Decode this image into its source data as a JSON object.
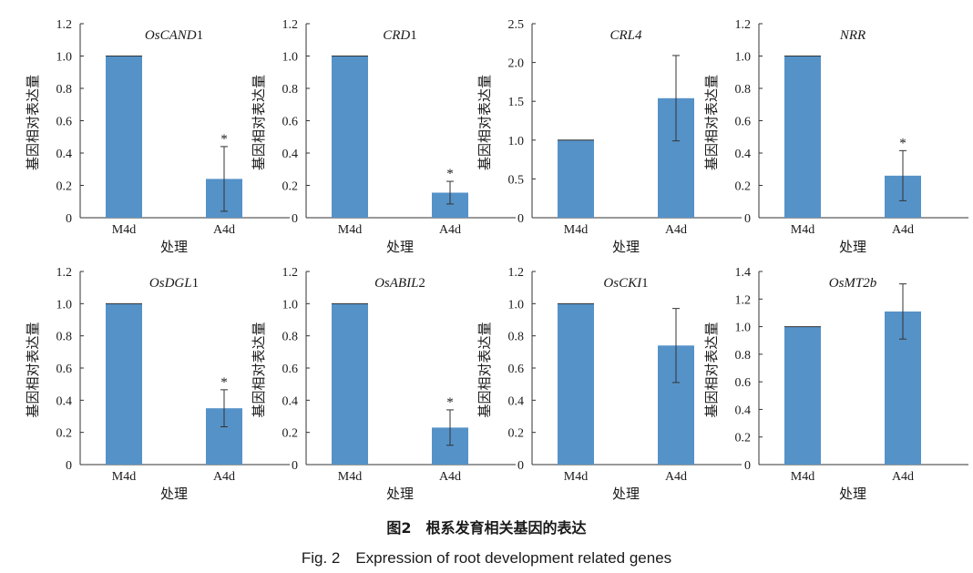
{
  "caption_cn": "图2　根系发育相关基因的表达",
  "caption_en": "Fig. 2　Expression of root development related genes",
  "colors": {
    "bar": "#5592c8",
    "axis": "#333333",
    "error": "#333333"
  },
  "chart_data": [
    {
      "type": "bar",
      "title_parts": [
        {
          "t": "OsCAND",
          "i": true
        },
        {
          "t": "1",
          "i": false
        }
      ],
      "ylabel": "基因相对表达量",
      "xlabel": "处理",
      "categories": [
        "M4d",
        "A4d"
      ],
      "values": [
        1.0,
        0.24
      ],
      "errors": [
        0.0,
        0.2
      ],
      "significance": [
        "",
        "*"
      ],
      "ylim": [
        0,
        1.2
      ],
      "yticks": [
        "0",
        "0.2",
        "0.4",
        "0.6",
        "0.8",
        "1.0",
        "1.2"
      ]
    },
    {
      "type": "bar",
      "title_parts": [
        {
          "t": "CRD",
          "i": true
        },
        {
          "t": "1",
          "i": false
        }
      ],
      "ylabel": "基因相对表达量",
      "xlabel": "处理",
      "categories": [
        "M4d",
        "A4d"
      ],
      "values": [
        1.0,
        0.155
      ],
      "errors": [
        0.0,
        0.07
      ],
      "significance": [
        "",
        "*"
      ],
      "ylim": [
        0,
        1.2
      ],
      "yticks": [
        "0",
        "0.2",
        "0.4",
        "0.6",
        "0.8",
        "1.0",
        "1.2"
      ]
    },
    {
      "type": "bar",
      "title_parts": [
        {
          "t": "CRL4",
          "i": true
        }
      ],
      "ylabel": "基因相对表达量",
      "xlabel": "处理",
      "categories": [
        "M4d",
        "A4d"
      ],
      "values": [
        1.0,
        1.54
      ],
      "errors": [
        0.0,
        0.55
      ],
      "significance": [
        "",
        ""
      ],
      "ylim": [
        0,
        2.5
      ],
      "yticks": [
        "0",
        "0.5",
        "1.0",
        "1.5",
        "2.0",
        "2.5"
      ]
    },
    {
      "type": "bar",
      "title_parts": [
        {
          "t": "NRR",
          "i": true
        }
      ],
      "ylabel": "基因相对表达量",
      "xlabel": "处理",
      "categories": [
        "M4d",
        "A4d"
      ],
      "values": [
        1.0,
        0.26
      ],
      "errors": [
        0.0,
        0.155
      ],
      "significance": [
        "",
        "*"
      ],
      "ylim": [
        0,
        1.2
      ],
      "yticks": [
        "0",
        "0.2",
        "0.4",
        "0.6",
        "0.8",
        "1.0",
        "1.2"
      ]
    },
    {
      "type": "bar",
      "title_parts": [
        {
          "t": "OsDGL",
          "i": true
        },
        {
          "t": "1",
          "i": false
        }
      ],
      "ylabel": "基因相对表达量",
      "xlabel": "处理",
      "categories": [
        "M4d",
        "A4d"
      ],
      "values": [
        1.0,
        0.35
      ],
      "errors": [
        0.0,
        0.115
      ],
      "significance": [
        "",
        "*"
      ],
      "ylim": [
        0,
        1.2
      ],
      "yticks": [
        "0",
        "0.2",
        "0.4",
        "0.6",
        "0.8",
        "1.0",
        "1.2"
      ]
    },
    {
      "type": "bar",
      "title_parts": [
        {
          "t": "OsABIL",
          "i": true
        },
        {
          "t": "2",
          "i": false
        }
      ],
      "ylabel": "基因相对表达量",
      "xlabel": "处理",
      "categories": [
        "M4d",
        "A4d"
      ],
      "values": [
        1.0,
        0.23
      ],
      "errors": [
        0.0,
        0.11
      ],
      "significance": [
        "",
        "*"
      ],
      "ylim": [
        0,
        1.2
      ],
      "yticks": [
        "0",
        "0.2",
        "0.4",
        "0.6",
        "0.8",
        "1.0",
        "1.2"
      ]
    },
    {
      "type": "bar",
      "title_parts": [
        {
          "t": "OsCKI",
          "i": true
        },
        {
          "t": "1",
          "i": false
        }
      ],
      "ylabel": "基因相对表达量",
      "xlabel": "处理",
      "categories": [
        "M4d",
        "A4d"
      ],
      "values": [
        1.0,
        0.74
      ],
      "errors": [
        0.0,
        0.23
      ],
      "significance": [
        "",
        ""
      ],
      "ylim": [
        0,
        1.2
      ],
      "yticks": [
        "0",
        "0.2",
        "0.4",
        "0.6",
        "0.8",
        "1.0",
        "1.2"
      ]
    },
    {
      "type": "bar",
      "title_parts": [
        {
          "t": "OsMT2b",
          "i": true
        }
      ],
      "ylabel": "基因相对表达量",
      "xlabel": "处理",
      "categories": [
        "M4d",
        "A4d"
      ],
      "values": [
        1.0,
        1.11
      ],
      "errors": [
        0.0,
        0.2
      ],
      "significance": [
        "",
        ""
      ],
      "ylim": [
        0,
        1.4
      ],
      "yticks": [
        "0",
        "0.2",
        "0.4",
        "0.6",
        "0.8",
        "1.0",
        "1.2",
        "1.4"
      ]
    }
  ]
}
